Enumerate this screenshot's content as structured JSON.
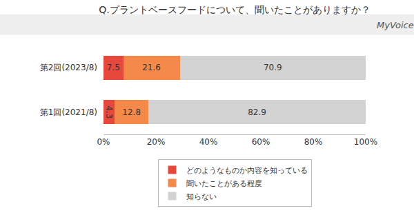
{
  "chart_data": {
    "type": "bar",
    "orientation": "horizontal",
    "stacked": true,
    "title": "Q.プラントベースフードについて、聞いたことがありますか？",
    "annotations": [
      "MyVoice"
    ],
    "categories": [
      "第2回(2023/8)",
      "第1回(2021/8)"
    ],
    "series": [
      {
        "name": "どのようなものか内容を知っている",
        "color": "#e8473c",
        "values": [
          7.5,
          4.3
        ]
      },
      {
        "name": "聞いたことがある程度",
        "color": "#f5894a",
        "values": [
          21.6,
          12.8
        ]
      },
      {
        "name": "知らない",
        "color": "#d3d3d3",
        "values": [
          70.9,
          82.9
        ]
      }
    ],
    "xlim": [
      0,
      100
    ],
    "xticks": [
      {
        "value": 0,
        "label": "0%"
      },
      {
        "value": 20,
        "label": "20%"
      },
      {
        "value": 40,
        "label": "40%"
      },
      {
        "value": 60,
        "label": "60%"
      },
      {
        "value": 80,
        "label": "80%"
      },
      {
        "value": 100,
        "label": "100%"
      }
    ],
    "grid": false,
    "data_labels": true,
    "legend": "bottom"
  }
}
